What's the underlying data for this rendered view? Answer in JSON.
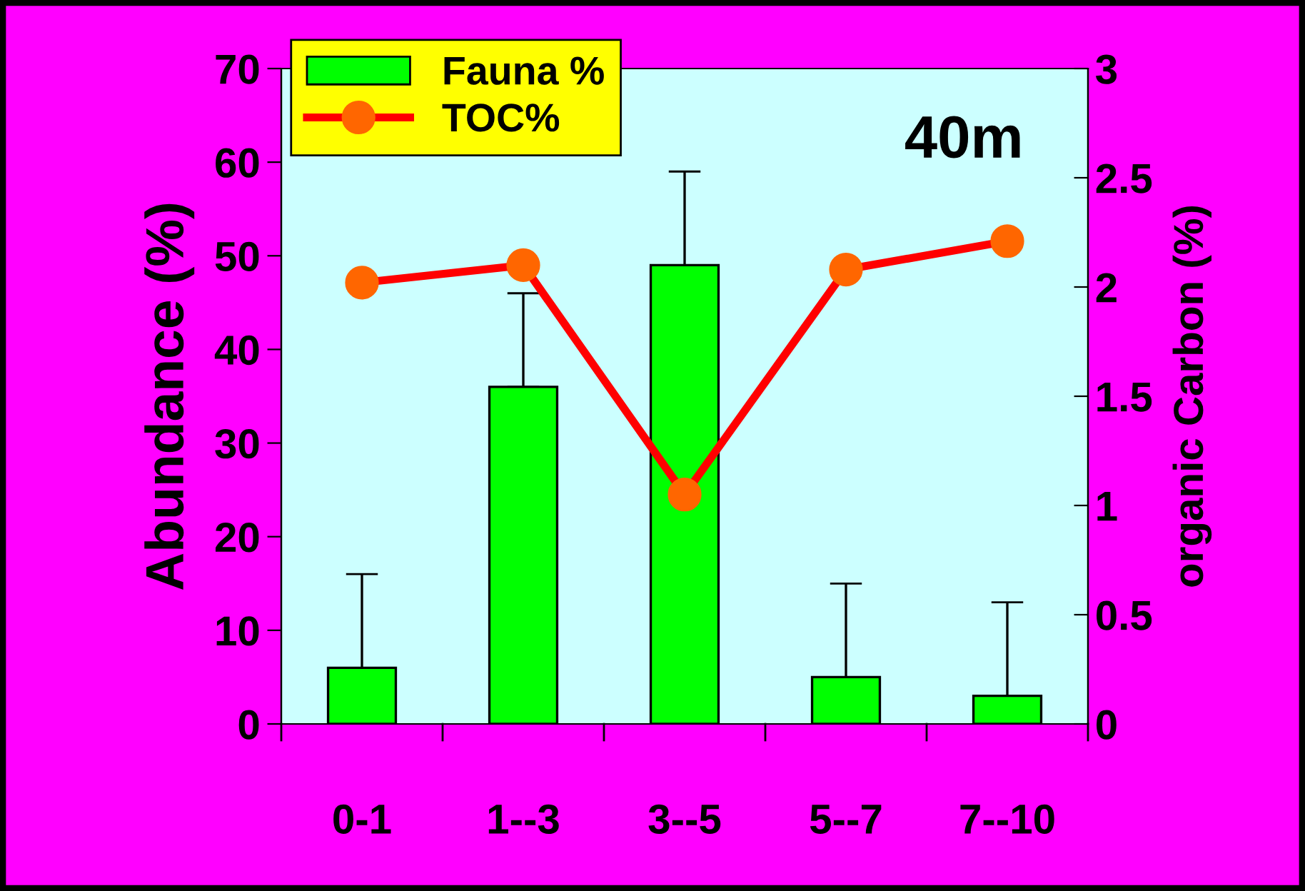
{
  "chart_data": {
    "type": "bar",
    "ylabel": "Abundance (%)",
    "y2label": "organic Carbon (%)",
    "annotations": [
      "40m"
    ],
    "categories": [
      "0-1",
      "1--3",
      "3--5",
      "5--7",
      "7--10"
    ],
    "series": [
      {
        "name": "Fauna %",
        "color": "#00ff00",
        "values": [
          6,
          36,
          49,
          5,
          3
        ],
        "errors": [
          [
            6,
            16
          ],
          [
            36,
            46
          ],
          [
            49,
            59
          ],
          [
            5,
            15
          ],
          [
            3,
            13
          ]
        ]
      },
      {
        "name": "TOC%",
        "type": "line",
        "axis": "y2",
        "color": "#ff0000",
        "marker": "circle",
        "values": [
          2.02,
          2.1,
          1.05,
          2.08,
          2.21
        ]
      }
    ],
    "ylim": [
      0,
      70
    ],
    "yticks": [
      0,
      10,
      20,
      30,
      40,
      50,
      60,
      70
    ],
    "y2lim": [
      0,
      3
    ],
    "y2ticks": [
      0,
      0.5,
      1,
      1.5,
      2,
      2.5,
      3
    ],
    "legend": "top left",
    "grid": false
  }
}
